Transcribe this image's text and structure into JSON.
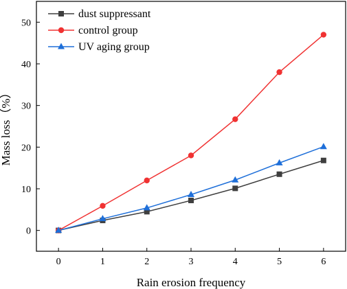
{
  "chart_data": {
    "type": "line",
    "title": "",
    "xlabel": "Rain erosion frequency",
    "ylabel": "Mass loss（%）",
    "x": [
      0,
      1,
      2,
      3,
      4,
      5,
      6
    ],
    "xlim": [
      -0.5,
      6.5
    ],
    "ylim": [
      -5,
      55
    ],
    "xticks": [
      0,
      1,
      2,
      3,
      4,
      5,
      6
    ],
    "yticks": [
      0,
      10,
      20,
      30,
      40,
      50
    ],
    "grid": false,
    "legend_position": "top-left",
    "series": [
      {
        "name": "dust suppressant",
        "values": [
          0,
          2.4,
          4.5,
          7.2,
          10.1,
          13.5,
          16.8
        ],
        "color": "#3f3f3f",
        "marker": "square"
      },
      {
        "name": "control group",
        "values": [
          0,
          5.9,
          12.0,
          18.0,
          26.7,
          38.0,
          47.0
        ],
        "color": "#f03232",
        "marker": "circle"
      },
      {
        "name": "UV aging group",
        "values": [
          0,
          2.8,
          5.4,
          8.6,
          12.1,
          16.2,
          20.1
        ],
        "color": "#1e6fd9",
        "marker": "triangle"
      }
    ]
  }
}
